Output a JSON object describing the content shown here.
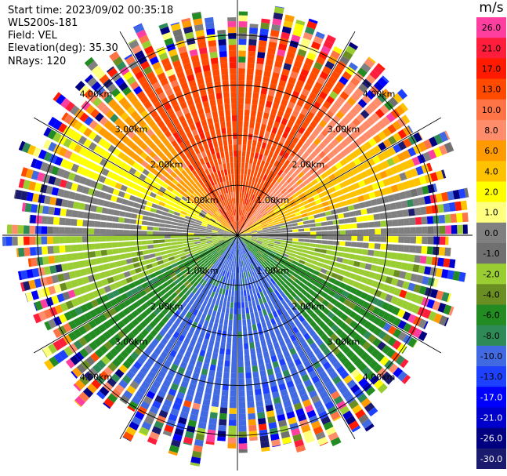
{
  "header": {
    "start_time": "Start time: 2023/09/02 00:35:18",
    "instrument": "WLS200s-181",
    "field": "Field: VEL",
    "elevation": "Elevation(deg): 35.30",
    "nrays": "NRays: 120"
  },
  "chart_data": {
    "type": "heatmap",
    "projection": "polar-ppi",
    "field": "VEL",
    "units": "m/s",
    "nrays": 120,
    "range_rings_km": [
      1.0,
      2.0,
      3.0,
      4.0
    ],
    "range_ring_labels": [
      "1.00km",
      "2.00km",
      "3.00km",
      "4.00km"
    ],
    "max_range_km": 4.7,
    "grid": true,
    "colorbar": {
      "unit": "m/s",
      "tick_labels": [
        "26.0",
        "21.0",
        "17.0",
        "13.0",
        "10.0",
        "8.0",
        "6.0",
        "4.0",
        "2.0",
        "1.0",
        "0.0",
        "-1.0",
        "-2.0",
        "-4.0",
        "-6.0",
        "-8.0",
        "-10.0",
        "-13.0",
        "-17.0",
        "-21.0",
        "-26.0",
        "-30.0"
      ],
      "colors": [
        "#ff3fa0",
        "#ff1d3c",
        "#ff1a00",
        "#ff4a00",
        "#ff7446",
        "#ff8c6a",
        "#ff9a00",
        "#ffc200",
        "#ffff00",
        "#ffff80",
        "#808080",
        "#707070",
        "#9acd32",
        "#6b8e23",
        "#228b22",
        "#2e8b57",
        "#4169e1",
        "#1e40ff",
        "#0000ff",
        "#0000cd",
        "#000080",
        "#1a1a6e"
      ]
    },
    "azimuth_sectors": [
      {
        "from_deg": -90,
        "to_deg": -68,
        "velocity": 0.0
      },
      {
        "from_deg": -68,
        "to_deg": -55,
        "velocity": 2.0
      },
      {
        "from_deg": -55,
        "to_deg": -35,
        "velocity": 6.0
      },
      {
        "from_deg": -35,
        "to_deg": 35,
        "velocity": 13.0
      },
      {
        "from_deg": 35,
        "to_deg": 55,
        "velocity": 8.0
      },
      {
        "from_deg": 55,
        "to_deg": 75,
        "velocity": 4.0
      },
      {
        "from_deg": 75,
        "to_deg": 95,
        "velocity": 0.0
      },
      {
        "from_deg": 95,
        "to_deg": 115,
        "velocity": -2.0
      },
      {
        "from_deg": 115,
        "to_deg": 140,
        "velocity": -6.0
      },
      {
        "from_deg": 140,
        "to_deg": 220,
        "velocity": -10.0
      },
      {
        "from_deg": 220,
        "to_deg": 245,
        "velocity": -6.0
      },
      {
        "from_deg": 245,
        "to_deg": 270,
        "velocity": -2.0
      }
    ],
    "noise_start_km": 3.9
  }
}
